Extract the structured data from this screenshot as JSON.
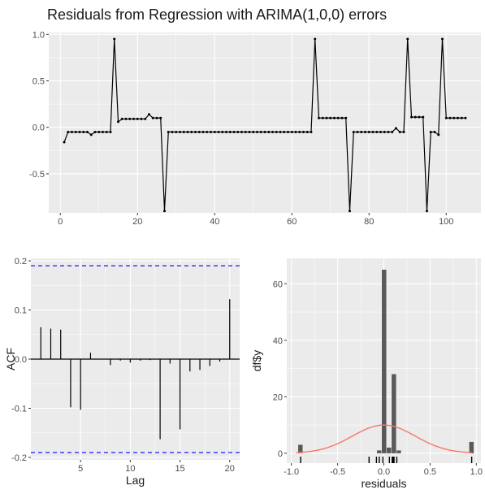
{
  "chart_data": [
    {
      "type": "line",
      "title": "Residuals from Regression with ARIMA(1,0,0) errors",
      "xlabel": "",
      "ylabel": "",
      "xlim": [
        -3,
        109
      ],
      "ylim": [
        -0.92,
        1.02
      ],
      "x_ticks": [
        0,
        20,
        40,
        60,
        80,
        100
      ],
      "y_ticks": [
        -0.5,
        0.0,
        0.5,
        1.0
      ],
      "grid": true,
      "x": [
        1,
        2,
        3,
        4,
        5,
        6,
        7,
        8,
        9,
        10,
        11,
        12,
        13,
        14,
        15,
        16,
        17,
        18,
        19,
        20,
        21,
        22,
        23,
        24,
        25,
        26,
        27,
        28,
        29,
        30,
        31,
        32,
        33,
        34,
        35,
        36,
        37,
        38,
        39,
        40,
        41,
        42,
        43,
        44,
        45,
        46,
        47,
        48,
        49,
        50,
        51,
        52,
        53,
        54,
        55,
        56,
        57,
        58,
        59,
        60,
        61,
        62,
        63,
        64,
        65,
        66,
        67,
        68,
        69,
        70,
        71,
        72,
        73,
        74,
        75,
        76,
        77,
        78,
        79,
        80,
        81,
        82,
        83,
        84,
        85,
        86,
        87,
        88,
        89,
        90,
        91,
        92,
        93,
        94,
        95,
        96,
        97,
        98,
        99,
        100,
        101,
        102,
        103,
        104,
        105
      ],
      "values": [
        -0.16,
        -0.05,
        -0.05,
        -0.05,
        -0.05,
        -0.05,
        -0.05,
        -0.08,
        -0.05,
        -0.05,
        -0.05,
        -0.05,
        -0.05,
        0.95,
        0.06,
        0.09,
        0.09,
        0.09,
        0.09,
        0.09,
        0.09,
        0.09,
        0.14,
        0.1,
        0.1,
        0.1,
        -0.9,
        -0.05,
        -0.05,
        -0.05,
        -0.05,
        -0.05,
        -0.05,
        -0.05,
        -0.05,
        -0.05,
        -0.05,
        -0.05,
        -0.05,
        -0.05,
        -0.05,
        -0.05,
        -0.05,
        -0.05,
        -0.05,
        -0.05,
        -0.05,
        -0.05,
        -0.05,
        -0.05,
        -0.05,
        -0.05,
        -0.05,
        -0.05,
        -0.05,
        -0.05,
        -0.05,
        -0.05,
        -0.05,
        -0.05,
        -0.05,
        -0.05,
        -0.05,
        -0.05,
        -0.05,
        0.95,
        0.1,
        0.1,
        0.1,
        0.1,
        0.1,
        0.1,
        0.1,
        0.1,
        -0.9,
        -0.05,
        -0.05,
        -0.05,
        -0.05,
        -0.05,
        -0.05,
        -0.05,
        -0.05,
        -0.05,
        -0.05,
        -0.05,
        -0.01,
        -0.05,
        -0.05,
        0.95,
        0.11,
        0.11,
        0.11,
        0.11,
        -0.9,
        -0.05,
        -0.05,
        -0.08,
        0.95,
        0.1,
        0.1,
        0.1,
        0.1,
        0.1,
        0.1
      ]
    },
    {
      "type": "bar",
      "xlabel": "Lag",
      "ylabel": "ACF",
      "xlim": [
        0,
        21
      ],
      "ylim": [
        -0.205,
        0.205
      ],
      "x_ticks": [
        5,
        10,
        15,
        20
      ],
      "y_ticks": [
        -0.2,
        -0.1,
        0.0,
        0.1,
        0.2
      ],
      "grid": true,
      "lags": [
        1,
        2,
        3,
        4,
        5,
        6,
        7,
        8,
        9,
        10,
        11,
        12,
        13,
        14,
        15,
        16,
        17,
        18,
        19,
        20
      ],
      "values": [
        0.065,
        0.062,
        0.06,
        -0.098,
        -0.103,
        0.013,
        0.0,
        -0.012,
        -0.003,
        -0.007,
        -0.003,
        -0.002,
        -0.163,
        -0.009,
        -0.143,
        -0.025,
        -0.022,
        -0.014,
        -0.005,
        0.122
      ],
      "confidence_limit": 0.19
    },
    {
      "type": "bar",
      "xlabel": "residuals",
      "ylabel": "df$y",
      "xlim": [
        -1.05,
        1.05
      ],
      "ylim": [
        -3.5,
        69
      ],
      "x_ticks": [
        -1.0,
        -0.5,
        0.0,
        0.5,
        1.0
      ],
      "x_tick_labels": [
        "-1.0",
        "-0.5",
        "0.0",
        "0.5",
        "1.0"
      ],
      "y_ticks": [
        0,
        20,
        40,
        60
      ],
      "grid": true,
      "bin_width": 0.0533,
      "bins": [
        {
          "center": -0.9,
          "count": 3
        },
        {
          "center": -0.048,
          "count": 1
        },
        {
          "center": 0.005,
          "count": 65
        },
        {
          "center": 0.058,
          "count": 2
        },
        {
          "center": 0.111,
          "count": 28
        },
        {
          "center": 0.164,
          "count": 1
        },
        {
          "center": 0.95,
          "count": 4
        }
      ],
      "density_curve": {
        "mean": 0.0,
        "sd": 0.34,
        "scale": 10,
        "color": "#f8766d"
      },
      "rug": [
        -0.9,
        -0.16,
        -0.08,
        -0.05,
        -0.01,
        0.06,
        0.09,
        0.1,
        0.11,
        0.14,
        0.95
      ]
    }
  ]
}
